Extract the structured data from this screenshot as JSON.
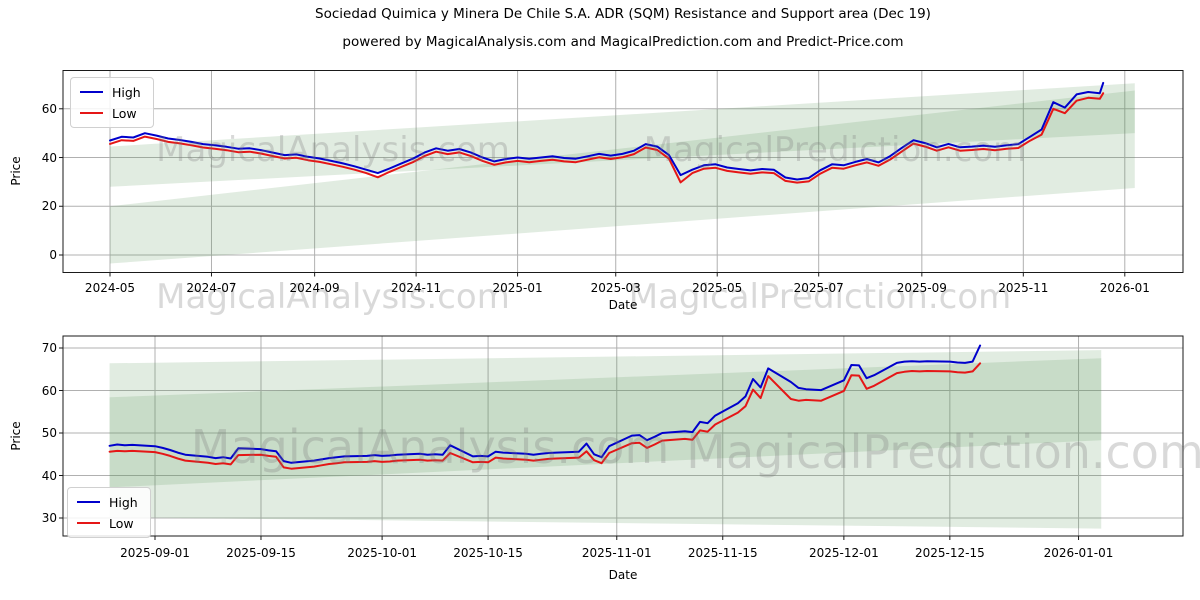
{
  "title": "Sociedad Quimica y Minera De Chile S.A. ADR (SQM) Resistance and Support area (Dec 19)",
  "subtitle": "powered by MagicalAnalysis.com and MagicalPrediction.com and Predict-Price.com",
  "watermarks": {
    "analysis": "MagicalAnalysis.com",
    "prediction": "MagicalPrediction.com"
  },
  "legend": {
    "high_label": "High",
    "low_label": "Low"
  },
  "colors": {
    "high": "#0000cc",
    "low": "#e51616",
    "band": "#5a965a",
    "grid": "#b0b0b0",
    "spine": "#1a1a1a"
  },
  "chart_data": [
    {
      "type": "line",
      "title": "Sociedad Quimica y Minera De Chile S.A. ADR (SQM) Resistance and Support area (Dec 19)",
      "xlabel": "Date",
      "ylabel": "Price",
      "ylim": [
        -7,
        76
      ],
      "grid": true,
      "legend_position": "upper left",
      "yticks": [
        0,
        20,
        40,
        60
      ],
      "xticks": [
        {
          "date": "2024-05-01",
          "label": "2024-05"
        },
        {
          "date": "2024-07-01",
          "label": "2024-07"
        },
        {
          "date": "2024-09-01",
          "label": "2024-09"
        },
        {
          "date": "2024-11-01",
          "label": "2024-11"
        },
        {
          "date": "2025-01-01",
          "label": "2025-01"
        },
        {
          "date": "2025-03-01",
          "label": "2025-03"
        },
        {
          "date": "2025-05-01",
          "label": "2025-05"
        },
        {
          "date": "2025-07-01",
          "label": "2025-07"
        },
        {
          "date": "2025-09-01",
          "label": "2025-09"
        },
        {
          "date": "2025-11-01",
          "label": "2025-11"
        },
        {
          "date": "2026-01-01",
          "label": "2026-01"
        }
      ],
      "bands": [
        {
          "name": "resistance-area",
          "start_date": "2024-05-01",
          "end_date": "2026-01-07",
          "start_top": 44.5,
          "start_bottom": 28.0,
          "end_top": 70.5,
          "end_bottom": 50.0
        },
        {
          "name": "support-area",
          "start_date": "2024-05-01",
          "end_date": "2026-01-07",
          "start_top": 20.0,
          "start_bottom": -3.5,
          "end_top": 67.5,
          "end_bottom": 27.5
        }
      ],
      "dates": [
        "2024-05-01",
        "2024-05-08",
        "2024-05-15",
        "2024-05-22",
        "2024-05-29",
        "2024-06-05",
        "2024-06-12",
        "2024-06-19",
        "2024-06-26",
        "2024-07-03",
        "2024-07-10",
        "2024-07-17",
        "2024-07-24",
        "2024-07-31",
        "2024-08-07",
        "2024-08-14",
        "2024-08-21",
        "2024-08-28",
        "2024-09-04",
        "2024-09-11",
        "2024-09-18",
        "2024-09-25",
        "2024-10-02",
        "2024-10-09",
        "2024-10-16",
        "2024-10-23",
        "2024-10-30",
        "2024-11-06",
        "2024-11-13",
        "2024-11-20",
        "2024-11-27",
        "2024-12-04",
        "2024-12-11",
        "2024-12-18",
        "2024-12-25",
        "2025-01-01",
        "2025-01-08",
        "2025-01-15",
        "2025-01-22",
        "2025-01-29",
        "2025-02-05",
        "2025-02-12",
        "2025-02-19",
        "2025-02-26",
        "2025-03-05",
        "2025-03-12",
        "2025-03-19",
        "2025-03-26",
        "2025-04-02",
        "2025-04-09",
        "2025-04-16",
        "2025-04-23",
        "2025-04-30",
        "2025-05-07",
        "2025-05-14",
        "2025-05-21",
        "2025-05-28",
        "2025-06-04",
        "2025-06-11",
        "2025-06-18",
        "2025-06-25",
        "2025-07-02",
        "2025-07-09",
        "2025-07-16",
        "2025-07-23",
        "2025-07-30",
        "2025-08-06",
        "2025-08-13",
        "2025-08-20",
        "2025-08-27",
        "2025-09-03",
        "2025-09-10",
        "2025-09-17",
        "2025-09-24",
        "2025-10-01",
        "2025-10-08",
        "2025-10-15",
        "2025-10-22",
        "2025-10-29",
        "2025-11-05",
        "2025-11-12",
        "2025-11-19",
        "2025-11-26",
        "2025-12-03",
        "2025-12-10",
        "2025-12-17",
        "2025-12-19"
      ],
      "series": [
        {
          "name": "High",
          "color_key": "high",
          "values": [
            47.0,
            48.5,
            48.2,
            50.0,
            49.0,
            47.8,
            47.2,
            46.4,
            45.5,
            45.0,
            44.4,
            43.6,
            43.8,
            43.0,
            42.0,
            41.0,
            41.3,
            40.3,
            39.6,
            38.6,
            37.6,
            36.4,
            35.0,
            33.6,
            35.5,
            37.5,
            39.5,
            42.0,
            43.8,
            42.8,
            43.5,
            42.0,
            40.0,
            38.4,
            39.4,
            40.0,
            39.5,
            40.0,
            40.5,
            39.8,
            39.5,
            40.5,
            41.5,
            40.8,
            41.5,
            42.8,
            45.5,
            44.5,
            41.0,
            32.8,
            35.0,
            36.8,
            37.2,
            35.9,
            35.3,
            34.7,
            35.3,
            35.0,
            31.8,
            31.0,
            31.6,
            34.8,
            37.2,
            36.8,
            38.2,
            39.4,
            38.0,
            40.6,
            44.0,
            47.1,
            45.9,
            44.2,
            45.6,
            44.2,
            44.5,
            44.9,
            44.4,
            45.0,
            45.5,
            48.5,
            51.5,
            62.7,
            60.5,
            65.9,
            66.9,
            66.4,
            70.6
          ]
        },
        {
          "name": "Low",
          "color_key": "low",
          "values": [
            45.6,
            47.1,
            46.8,
            48.6,
            47.6,
            46.4,
            45.8,
            45.0,
            44.1,
            43.6,
            43.0,
            42.2,
            42.4,
            41.6,
            40.6,
            39.6,
            39.9,
            38.9,
            38.2,
            37.2,
            36.2,
            35.0,
            33.6,
            31.9,
            34.1,
            36.1,
            38.1,
            40.6,
            42.4,
            41.4,
            42.1,
            40.6,
            38.6,
            37.0,
            38.0,
            38.6,
            38.1,
            38.6,
            39.1,
            38.4,
            38.1,
            39.1,
            40.1,
            39.4,
            40.1,
            41.4,
            44.1,
            43.1,
            39.5,
            29.8,
            33.6,
            35.4,
            35.8,
            34.5,
            33.9,
            33.3,
            33.9,
            33.6,
            30.4,
            29.7,
            30.2,
            33.4,
            35.8,
            35.4,
            36.8,
            38.0,
            36.6,
            39.2,
            42.5,
            45.7,
            44.5,
            42.8,
            44.2,
            42.8,
            43.1,
            43.5,
            43.0,
            43.6,
            43.9,
            46.9,
            49.4,
            60.0,
            58.2,
            63.3,
            64.5,
            64.1,
            66.4
          ]
        }
      ]
    },
    {
      "type": "line",
      "title": "",
      "xlabel": "Date",
      "ylabel": "Price",
      "ylim": [
        26,
        73
      ],
      "grid": true,
      "legend_position": "lower left",
      "yticks": [
        30,
        40,
        50,
        60,
        70
      ],
      "xticks": [
        {
          "date": "2025-09-01",
          "label": "2025-09-01"
        },
        {
          "date": "2025-09-15",
          "label": "2025-09-15"
        },
        {
          "date": "2025-10-01",
          "label": "2025-10-01"
        },
        {
          "date": "2025-10-15",
          "label": "2025-10-15"
        },
        {
          "date": "2025-11-01",
          "label": "2025-11-01"
        },
        {
          "date": "2025-11-15",
          "label": "2025-11-15"
        },
        {
          "date": "2025-12-01",
          "label": "2025-12-01"
        },
        {
          "date": "2025-12-15",
          "label": "2025-12-15"
        },
        {
          "date": "2026-01-01",
          "label": "2026-01-01"
        }
      ],
      "bands": [
        {
          "name": "resistance-area",
          "start_date": "2025-08-26",
          "end_date": "2026-01-04",
          "start_top": 66.4,
          "start_bottom": 37.2,
          "end_top": 69.5,
          "end_bottom": 48.3
        },
        {
          "name": "support-area",
          "start_date": "2025-08-26",
          "end_date": "2026-01-04",
          "start_top": 58.4,
          "start_bottom": 30.2,
          "end_top": 67.6,
          "end_bottom": 27.5
        }
      ],
      "dates": [
        "2025-08-26",
        "2025-08-27",
        "2025-08-28",
        "2025-08-29",
        "2025-09-01",
        "2025-09-02",
        "2025-09-03",
        "2025-09-04",
        "2025-09-05",
        "2025-09-08",
        "2025-09-09",
        "2025-09-10",
        "2025-09-11",
        "2025-09-12",
        "2025-09-15",
        "2025-09-16",
        "2025-09-17",
        "2025-09-18",
        "2025-09-19",
        "2025-09-22",
        "2025-09-23",
        "2025-09-24",
        "2025-09-25",
        "2025-09-26",
        "2025-09-29",
        "2025-09-30",
        "2025-10-01",
        "2025-10-02",
        "2025-10-03",
        "2025-10-06",
        "2025-10-07",
        "2025-10-08",
        "2025-10-09",
        "2025-10-10",
        "2025-10-13",
        "2025-10-14",
        "2025-10-15",
        "2025-10-16",
        "2025-10-17",
        "2025-10-20",
        "2025-10-21",
        "2025-10-22",
        "2025-10-23",
        "2025-10-24",
        "2025-10-27",
        "2025-10-28",
        "2025-10-29",
        "2025-10-30",
        "2025-10-31",
        "2025-11-03",
        "2025-11-04",
        "2025-11-05",
        "2025-11-06",
        "2025-11-07",
        "2025-11-10",
        "2025-11-11",
        "2025-11-12",
        "2025-11-13",
        "2025-11-14",
        "2025-11-17",
        "2025-11-18",
        "2025-11-19",
        "2025-11-20",
        "2025-11-21",
        "2025-11-24",
        "2025-11-25",
        "2025-11-26",
        "2025-11-28",
        "2025-12-01",
        "2025-12-02",
        "2025-12-03",
        "2025-12-04",
        "2025-12-05",
        "2025-12-08",
        "2025-12-09",
        "2025-12-10",
        "2025-12-11",
        "2025-12-12",
        "2025-12-15",
        "2025-12-16",
        "2025-12-17",
        "2025-12-18",
        "2025-12-19"
      ],
      "series": [
        {
          "name": "High",
          "color_key": "high",
          "values": [
            47.0,
            47.3,
            47.1,
            47.2,
            46.9,
            46.5,
            46.0,
            45.4,
            44.9,
            44.4,
            44.1,
            44.3,
            44.0,
            46.4,
            46.2,
            45.9,
            45.7,
            43.4,
            43.0,
            43.5,
            43.8,
            44.1,
            44.3,
            44.5,
            44.6,
            44.8,
            44.6,
            44.7,
            44.9,
            45.1,
            44.9,
            45.0,
            44.9,
            47.1,
            44.5,
            44.6,
            44.5,
            45.6,
            45.4,
            45.1,
            44.9,
            45.1,
            45.3,
            45.4,
            45.6,
            47.5,
            45.0,
            44.3,
            46.9,
            49.4,
            49.5,
            48.3,
            49.1,
            50.0,
            50.4,
            50.2,
            52.6,
            52.3,
            54.1,
            57.0,
            58.6,
            62.7,
            60.7,
            65.2,
            62.0,
            60.6,
            60.3,
            60.1,
            62.4,
            66.0,
            65.9,
            62.9,
            63.6,
            66.5,
            66.8,
            66.9,
            66.8,
            66.9,
            66.8,
            66.6,
            66.5,
            66.8,
            70.6
          ]
        },
        {
          "name": "Low",
          "color_key": "low",
          "values": [
            45.6,
            45.8,
            45.7,
            45.8,
            45.5,
            45.1,
            44.6,
            44.0,
            43.5,
            43.0,
            42.7,
            42.9,
            42.6,
            44.8,
            44.9,
            44.6,
            44.4,
            41.9,
            41.6,
            42.1,
            42.4,
            42.7,
            42.9,
            43.1,
            43.2,
            43.4,
            43.2,
            43.3,
            43.5,
            43.7,
            43.5,
            43.6,
            43.5,
            45.3,
            43.1,
            43.2,
            43.1,
            44.2,
            44.0,
            43.7,
            43.5,
            43.7,
            43.9,
            44.0,
            44.2,
            45.7,
            43.6,
            42.9,
            45.3,
            47.6,
            47.7,
            46.5,
            47.3,
            48.2,
            48.6,
            48.4,
            50.6,
            50.3,
            52.0,
            54.8,
            56.3,
            60.2,
            58.2,
            63.4,
            58.0,
            57.6,
            57.8,
            57.6,
            59.9,
            63.6,
            63.5,
            60.4,
            61.1,
            64.1,
            64.4,
            64.6,
            64.5,
            64.6,
            64.5,
            64.3,
            64.2,
            64.5,
            66.4
          ]
        }
      ]
    }
  ]
}
